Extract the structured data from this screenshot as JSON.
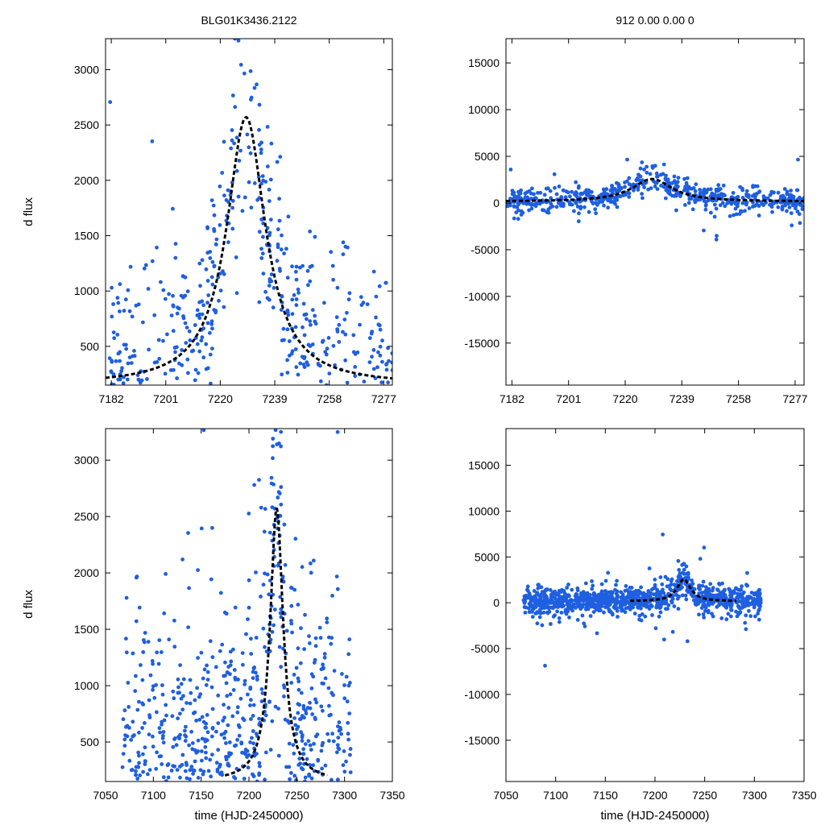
{
  "figure": {
    "title_left": "BLG01K3436.2122",
    "title_right": "912  0.00  0.00  0",
    "ylabel": "d flux",
    "xlabel": "time (HJD-2450000)",
    "point_color": "#1f5fe0",
    "model_color": "#000000"
  },
  "chart_data": [
    {
      "id": "top-left",
      "type": "scatter",
      "title": "BLG01K3436.2122",
      "xlabel": "",
      "ylabel": "d flux",
      "xlim": [
        7180,
        7280
      ],
      "ylim": [
        150,
        3280
      ],
      "xticks": [
        7182,
        7201,
        7220,
        7239,
        7258,
        7277
      ],
      "yticks": [
        500,
        1000,
        1500,
        2000,
        2500,
        3000
      ],
      "model": {
        "t0": 7229,
        "peak": 2570,
        "base": 150,
        "tau": 8.2
      },
      "points": {
        "seed": 11,
        "n": 620,
        "xmin": 7180,
        "xmax": 7280,
        "scatter": 480,
        "clip": [
          150,
          3280
        ]
      },
      "series": [
        {
          "name": "data",
          "color": "#1f5fe0"
        },
        {
          "name": "model",
          "color": "#000000"
        }
      ]
    },
    {
      "id": "top-right",
      "type": "scatter",
      "title": "912  0.00  0.00  0",
      "xlabel": "",
      "ylabel": "",
      "xlim": [
        7180,
        7280
      ],
      "ylim": [
        -19500,
        17600
      ],
      "xticks": [
        7182,
        7201,
        7220,
        7239,
        7258,
        7277
      ],
      "yticks": [
        15000,
        10000,
        5000,
        0,
        -5000,
        -10000,
        -15000
      ],
      "model": {
        "t0": 7229,
        "peak": 2570,
        "base": 150,
        "tau": 8.2
      },
      "points": {
        "seed": 11,
        "n": 620,
        "xmin": 7180,
        "xmax": 7280,
        "scatter": 650,
        "clip": [
          -19500,
          17600
        ]
      },
      "series": [
        {
          "name": "data",
          "color": "#1f5fe0"
        },
        {
          "name": "model",
          "color": "#000000"
        }
      ]
    },
    {
      "id": "bottom-left",
      "type": "scatter",
      "title": "",
      "xlabel": "time (HJD-2450000)",
      "ylabel": "d flux",
      "xlim": [
        7050,
        7350
      ],
      "ylim": [
        150,
        3280
      ],
      "xticks": [
        7050,
        7100,
        7150,
        7200,
        7250,
        7300,
        7350
      ],
      "yticks": [
        500,
        1000,
        1500,
        2000,
        2500,
        3000
      ],
      "model": {
        "t0": 7229,
        "peak": 2570,
        "base": 150,
        "tau": 8.2,
        "xmin": 7175,
        "xmax": 7282
      },
      "points": {
        "seed": 29,
        "n": 1050,
        "xmin": 7068,
        "xmax": 7308,
        "scatter": 700,
        "clip": [
          150,
          3280
        ]
      },
      "series": [
        {
          "name": "data",
          "color": "#1f5fe0"
        },
        {
          "name": "model",
          "color": "#000000"
        }
      ]
    },
    {
      "id": "bottom-right",
      "type": "scatter",
      "title": "",
      "xlabel": "time (HJD-2450000)",
      "ylabel": "",
      "xlim": [
        7050,
        7350
      ],
      "ylim": [
        -19500,
        19000
      ],
      "xticks": [
        7050,
        7100,
        7150,
        7200,
        7250,
        7300,
        7350
      ],
      "yticks": [
        15000,
        10000,
        5000,
        0,
        -5000,
        -10000,
        -15000
      ],
      "model": {
        "t0": 7229,
        "peak": 2570,
        "base": 150,
        "tau": 8.2,
        "xmin": 7175,
        "xmax": 7282
      },
      "points": {
        "seed": 29,
        "n": 1050,
        "xmin": 7068,
        "xmax": 7308,
        "scatter": 700,
        "clip": [
          -19500,
          19000
        ]
      },
      "series": [
        {
          "name": "data",
          "color": "#1f5fe0"
        },
        {
          "name": "model",
          "color": "#000000"
        }
      ]
    }
  ]
}
